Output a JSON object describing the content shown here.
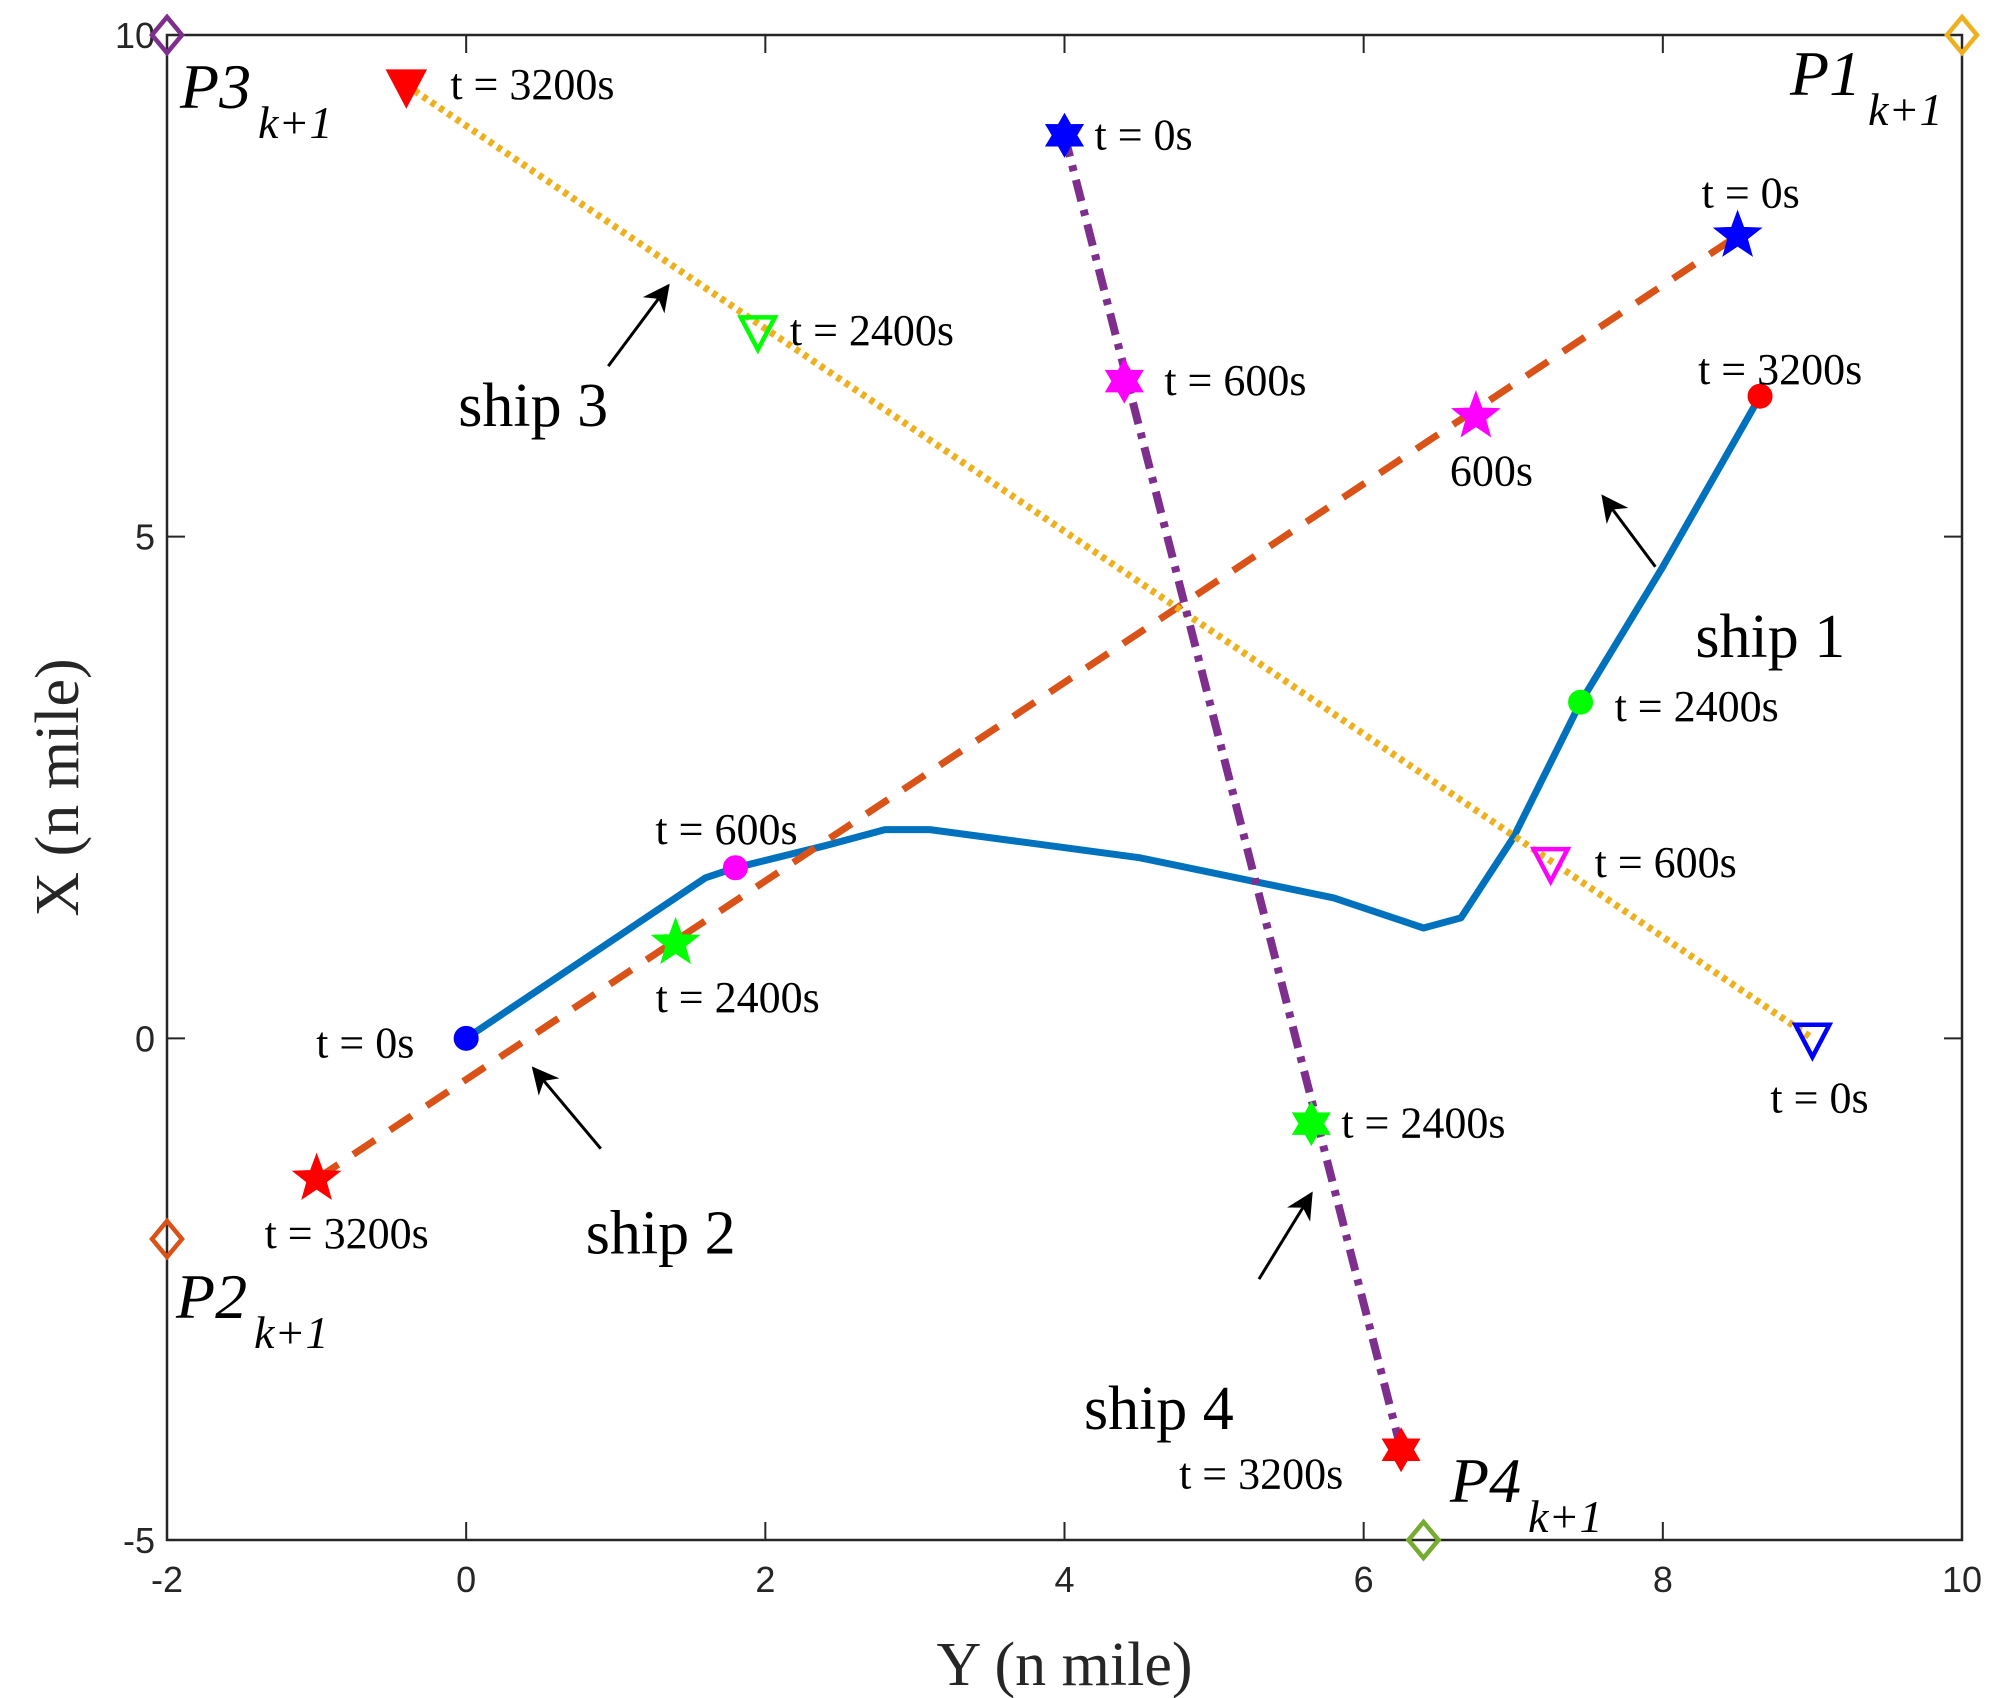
{
  "chart_data": {
    "type": "line",
    "xlabel": "Y (n mile)",
    "ylabel": "X (n mile)",
    "xlim": [
      -2,
      10
    ],
    "ylim": [
      -5,
      10
    ],
    "xticks": [
      -2,
      0,
      2,
      4,
      6,
      8,
      10
    ],
    "yticks": [
      -5,
      0,
      5,
      10
    ],
    "grid": false,
    "series": [
      {
        "name": "ship 1",
        "color": "#0072BD",
        "style": "solid",
        "points": [
          [
            0,
            0
          ],
          [
            1.6,
            1.6
          ],
          [
            1.8,
            1.7
          ],
          [
            2.4,
            1.92
          ],
          [
            2.8,
            2.08
          ],
          [
            3.1,
            2.08
          ],
          [
            4.5,
            1.8
          ],
          [
            5.8,
            1.4
          ],
          [
            6.4,
            1.1
          ],
          [
            6.65,
            1.2
          ],
          [
            7.0,
            2.0
          ],
          [
            7.45,
            3.35
          ],
          [
            8.0,
            4.7
          ],
          [
            8.65,
            6.4
          ]
        ]
      },
      {
        "name": "ship 2",
        "color": "#D95319",
        "style": "dashed",
        "points": [
          [
            -1.0,
            -1.4
          ],
          [
            8.5,
            8.0
          ]
        ]
      },
      {
        "name": "ship 3",
        "color": "#EDB120",
        "style": "dotted",
        "points": [
          [
            -0.4,
            9.5
          ],
          [
            9.0,
            0.0
          ]
        ]
      },
      {
        "name": "ship 4",
        "color": "#7E2F8E",
        "style": "dashdot",
        "points": [
          [
            4.0,
            9.0
          ],
          [
            6.25,
            -4.1
          ]
        ]
      }
    ],
    "markers": [
      {
        "series": "ship 1",
        "shape": "circle",
        "x": 0.0,
        "y": 0.0,
        "color": "#0000FF",
        "label": "t = 0s"
      },
      {
        "series": "ship 1",
        "shape": "circle",
        "x": 1.8,
        "y": 1.7,
        "color": "#FF00FF",
        "label": "t = 600s"
      },
      {
        "series": "ship 1",
        "shape": "circle",
        "x": 7.45,
        "y": 3.35,
        "color": "#00FF00",
        "label": "t = 2400s"
      },
      {
        "series": "ship 1",
        "shape": "circle",
        "x": 8.65,
        "y": 6.4,
        "color": "#FF0000",
        "label": "t = 3200s"
      },
      {
        "series": "ship 2",
        "shape": "star",
        "x": 8.5,
        "y": 8.0,
        "color": "#0000FF",
        "label": "t = 0s"
      },
      {
        "series": "ship 2",
        "shape": "star",
        "x": 6.75,
        "y": 6.2,
        "color": "#FF00FF",
        "label": "600s"
      },
      {
        "series": "ship 2",
        "shape": "star",
        "x": 1.4,
        "y": 0.95,
        "color": "#00FF00",
        "label": "t = 2400s"
      },
      {
        "series": "ship 2",
        "shape": "star",
        "x": -1.0,
        "y": -1.4,
        "color": "#FF0000",
        "label": "t = 3200s"
      },
      {
        "series": "ship 3",
        "shape": "triangle-open",
        "x": 9.0,
        "y": 0.0,
        "color": "#0000FF",
        "label": "t = 0s"
      },
      {
        "series": "ship 3",
        "shape": "triangle-open",
        "x": 7.25,
        "y": 1.75,
        "color": "#FF00FF",
        "label": "t = 600s"
      },
      {
        "series": "ship 3",
        "shape": "triangle-open",
        "x": 1.95,
        "y": 7.05,
        "color": "#00FF00",
        "label": "t = 2400s"
      },
      {
        "series": "ship 3",
        "shape": "triangle-filled",
        "x": -0.4,
        "y": 9.5,
        "color": "#FF0000",
        "label": "t = 3200s"
      },
      {
        "series": "ship 4",
        "shape": "hexagram",
        "x": 4.0,
        "y": 9.0,
        "color": "#0000FF",
        "label": "t = 0s"
      },
      {
        "series": "ship 4",
        "shape": "hexagram",
        "x": 4.4,
        "y": 6.55,
        "color": "#FF00FF",
        "label": "t = 600s"
      },
      {
        "series": "ship 4",
        "shape": "hexagram",
        "x": 5.65,
        "y": -0.85,
        "color": "#00FF00",
        "label": "t = 2400s"
      },
      {
        "series": "ship 4",
        "shape": "hexagram",
        "x": 6.25,
        "y": -4.1,
        "color": "#FF0000",
        "label": "t = 3200s"
      }
    ],
    "waypoints": [
      {
        "name": "P1",
        "sub": "k+1",
        "x": 10.0,
        "y": 10.0,
        "color": "#EDB120"
      },
      {
        "name": "P2",
        "sub": "k+1",
        "x": -2.0,
        "y": -2.0,
        "color": "#D95319"
      },
      {
        "name": "P3",
        "sub": "k+1",
        "x": -2.0,
        "y": 10.0,
        "color": "#7E2F8E"
      },
      {
        "name": "P4",
        "sub": "k+1",
        "x": 6.4,
        "y": -5.0,
        "color": "#77AC30"
      }
    ],
    "annotations": [
      {
        "text": "ship 1",
        "arrow_from": [
          7.95,
          4.7
        ],
        "arrow_to": [
          7.6,
          5.4
        ]
      },
      {
        "text": "ship 2",
        "arrow_from": [
          0.9,
          -1.1
        ],
        "arrow_to": [
          0.45,
          -0.3
        ]
      },
      {
        "text": "ship 3",
        "arrow_from": [
          0.95,
          6.7
        ],
        "arrow_to": [
          1.35,
          7.5
        ]
      },
      {
        "text": "ship 4",
        "arrow_from": [
          5.3,
          -2.4
        ],
        "arrow_to": [
          5.65,
          -1.55
        ]
      }
    ]
  }
}
